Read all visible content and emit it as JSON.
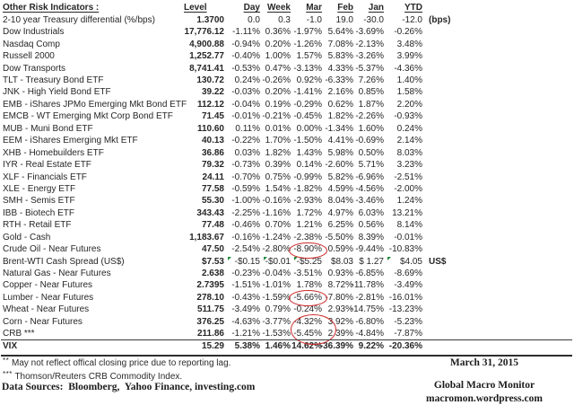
{
  "table": {
    "title": "Other Risk Indicators :",
    "columns": [
      "Level",
      "Day",
      "Week",
      "Mar",
      "Feb",
      "Jan",
      "YTD"
    ],
    "rows": [
      {
        "label": "2-10 year Treasury differential (%/bps)",
        "values": [
          "1.3700",
          "0.0",
          "0.3",
          "-1.0",
          "19.0",
          "-30.0",
          "-12.0"
        ],
        "note": "(bps)"
      },
      {
        "label": "Dow Industrials",
        "values": [
          "17,776.12",
          "-1.11%",
          "0.36%",
          "-1.97%",
          "5.64%",
          "-3.69%",
          "-0.26%"
        ],
        "note": ""
      },
      {
        "label": "Nasdaq Comp",
        "values": [
          "4,900.88",
          "-0.94%",
          "0.20%",
          "-1.26%",
          "7.08%",
          "-2.13%",
          "3.48%"
        ],
        "note": ""
      },
      {
        "label": "Russell 2000",
        "values": [
          "1,252.77",
          "-0.40%",
          "1.00%",
          "1.57%",
          "5.83%",
          "-3.26%",
          "3.99%"
        ],
        "note": ""
      },
      {
        "label": "Dow Transports",
        "values": [
          "8,741.41",
          "-0.53%",
          "0.47%",
          "-3.13%",
          "4.33%",
          "-5.37%",
          "-4.36%"
        ],
        "note": ""
      },
      {
        "label": "TLT - Treasury Bond ETF",
        "values": [
          "130.72",
          "0.24%",
          "-0.26%",
          "0.92%",
          "-6.33%",
          "7.26%",
          "1.40%"
        ],
        "note": ""
      },
      {
        "label": "JNK - High Yield Bond ETF",
        "values": [
          "39.22",
          "-0.03%",
          "0.20%",
          "-1.41%",
          "2.16%",
          "0.85%",
          "1.58%"
        ],
        "note": ""
      },
      {
        "label": "EMB - iShares JPMo Emerging Mkt Bond ETF",
        "values": [
          "112.12",
          "-0.04%",
          "0.19%",
          "-0.29%",
          "0.62%",
          "1.87%",
          "2.20%"
        ],
        "note": ""
      },
      {
        "label": "EMCB - WT Emerging Mkt Corp Bond ETF",
        "values": [
          "71.45",
          "-0.01%",
          "-0.21%",
          "-0.45%",
          "1.82%",
          "-2.26%",
          "-0.93%"
        ],
        "note": ""
      },
      {
        "label": "MUB - Muni Bond ETF",
        "values": [
          "110.60",
          "0.11%",
          "0.01%",
          "0.00%",
          "-1.34%",
          "1.60%",
          "0.24%"
        ],
        "note": ""
      },
      {
        "label": "EEM - iShares Emerging Mkt ETF",
        "values": [
          "40.13",
          "-0.22%",
          "1.70%",
          "-1.50%",
          "4.41%",
          "-0.69%",
          "2.14%"
        ],
        "note": ""
      },
      {
        "label": "XHB - Homebuilders ETF",
        "values": [
          "36.86",
          "0.03%",
          "1.82%",
          "1.43%",
          "5.98%",
          "0.50%",
          "8.03%"
        ],
        "note": ""
      },
      {
        "label": "IYR - Real Estate ETF",
        "values": [
          "79.32",
          "-0.73%",
          "0.39%",
          "0.14%",
          "-2.60%",
          "5.71%",
          "3.23%"
        ],
        "note": ""
      },
      {
        "label": "XLF - Financials ETF",
        "values": [
          "24.11",
          "-0.70%",
          "0.75%",
          "-0.99%",
          "5.82%",
          "-6.96%",
          "-2.51%"
        ],
        "note": ""
      },
      {
        "label": "XLE - Energy ETF",
        "values": [
          "77.58",
          "-0.59%",
          "1.54%",
          "-1.82%",
          "4.59%",
          "-4.56%",
          "-2.00%"
        ],
        "note": ""
      },
      {
        "label": "SMH - Semis ETF",
        "values": [
          "55.30",
          "-1.00%",
          "-0.16%",
          "-2.93%",
          "8.04%",
          "-3.46%",
          "1.24%"
        ],
        "note": ""
      },
      {
        "label": "IBB - Biotech ETF",
        "values": [
          "343.43",
          "-2.25%",
          "-1.16%",
          "1.72%",
          "4.97%",
          "6.03%",
          "13.21%"
        ],
        "note": ""
      },
      {
        "label": "RTH - Retail ETF",
        "values": [
          "77.48",
          "-0.46%",
          "0.70%",
          "1.21%",
          "6.25%",
          "0.56%",
          "8.14%"
        ],
        "note": ""
      },
      {
        "label": "Gold - Cash",
        "values": [
          "1,183.67",
          "-0.16%",
          "-1.24%",
          "-2.38%",
          "-5.50%",
          "8.39%",
          "-0.01%"
        ],
        "note": ""
      },
      {
        "label": "Crude Oil - Near Futures",
        "values": [
          "47.50",
          "-2.54%",
          "-2.80%",
          "-8.90%",
          "0.59%",
          "-9.44%",
          "-10.83%"
        ],
        "note": ""
      },
      {
        "label": "Brent-WTI Cash Spread (US$)",
        "values": [
          "$7.53",
          "-$0.15",
          "-$0.01",
          "-$5.25",
          "$8.03",
          "$ 1.27",
          "$4.05"
        ],
        "note": "US$"
      },
      {
        "label": "Natural Gas - Near Futures",
        "values": [
          "2.638",
          "-0.23%",
          "-0.04%",
          "-3.51%",
          "0.93%",
          "-6.85%",
          "-8.69%"
        ],
        "note": ""
      },
      {
        "label": "Copper - Near Futures",
        "values": [
          "2.7395",
          "-1.51%",
          "-1.01%",
          "1.78%",
          "8.72%",
          "-11.78%",
          "-3.49%"
        ],
        "note": ""
      },
      {
        "label": "Lumber - Near Futures",
        "values": [
          "278.10",
          "-0.43%",
          "-1.59%",
          "-5.66%",
          "-7.80%",
          "-2.81%",
          "-16.01%"
        ],
        "note": ""
      },
      {
        "label": "Wheat - Near Futures",
        "values": [
          "511.75",
          "-3.49%",
          "0.79%",
          "-0.24%",
          "2.93%",
          "-14.75%",
          "-13.23%"
        ],
        "note": ""
      },
      {
        "label": "Corn - Near Futures",
        "values": [
          "376.25",
          "-4.63%",
          "-3.77%",
          "-4.32%",
          "3.92%",
          "-6.80%",
          "-5.23%"
        ],
        "note": ""
      },
      {
        "label": "CRB ***",
        "values": [
          "211.86",
          "-1.21%",
          "-1.53%",
          "-5.45%",
          "2.39%",
          "-4.84%",
          "-7.87%"
        ],
        "note": ""
      },
      {
        "label": "VIX",
        "values": [
          "15.29",
          "5.38%",
          "1.46%",
          "14.62%",
          "-36.39%",
          "9.22%",
          "-20.36%"
        ],
        "note": "",
        "bold": true
      }
    ]
  },
  "annotations": {
    "red_ovals": [
      {
        "row": 19,
        "col": "Mar",
        "span": 1
      },
      {
        "row": 23,
        "col": "Mar",
        "span": 1
      },
      {
        "row": 25,
        "col": "Mar",
        "span": 2
      }
    ],
    "comment_markers": {
      "row": 20,
      "cols": [
        "Day",
        "Week",
        "Mar",
        "YTD"
      ]
    },
    "oval_color": "#cc2b2b",
    "marker_color": "#1e8a3c"
  },
  "footnotes": [
    {
      "marker": "**",
      "text": " May not reflect offical closing price due to reporting lag."
    },
    {
      "marker": "***",
      "text": " Thomson/Reuters CRB Commodity Index."
    }
  ],
  "data_sources": "Data Sources:  Bloomberg,  Yahoo Finance, investing.com",
  "date": "March 31, 2015",
  "brand": {
    "name": "Global Macro Monitor",
    "url": "macromon.wordpress.com"
  }
}
